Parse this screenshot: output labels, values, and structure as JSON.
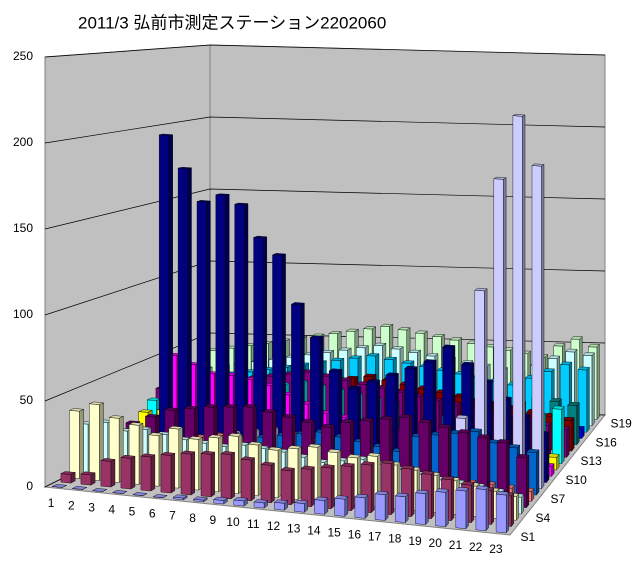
{
  "chart_data": {
    "type": "bar3d",
    "title": "2011/3  弘前市測定ステーション2202060",
    "categories": [
      "1",
      "2",
      "3",
      "4",
      "5",
      "6",
      "7",
      "8",
      "9",
      "10",
      "11",
      "12",
      "13",
      "14",
      "15",
      "16",
      "17",
      "18",
      "19",
      "20",
      "21",
      "22",
      "23"
    ],
    "ylim": [
      0,
      250
    ],
    "yticks": [
      0,
      50,
      100,
      150,
      200,
      250
    ],
    "grid": true,
    "series": [
      {
        "name": "S1",
        "color": "#9999ff",
        "values": [
          0,
          0,
          0,
          0,
          0,
          0,
          1,
          1,
          2,
          3,
          3,
          4,
          5,
          8,
          10,
          12,
          15,
          15,
          18,
          20,
          22,
          24,
          22
        ]
      },
      {
        "name": null,
        "color": "#993366",
        "values": [
          5,
          6,
          15,
          18,
          20,
          22,
          24,
          25,
          26,
          24,
          22,
          20,
          22,
          24,
          26,
          28,
          30,
          28,
          26,
          24,
          22,
          20,
          18
        ]
      },
      {
        "name": null,
        "color": "#ffffcc",
        "values": [
          40,
          45,
          38,
          35,
          30,
          35,
          30,
          32,
          34,
          30,
          28,
          30,
          32,
          30,
          28,
          30,
          26,
          24,
          22,
          20,
          18,
          16,
          14
        ]
      },
      {
        "name": "S4",
        "color": "#ccffff",
        "values": [
          30,
          32,
          28,
          30,
          28,
          26,
          25,
          24,
          26,
          25,
          24,
          22,
          20,
          22,
          24,
          22,
          20,
          18,
          16,
          15,
          14,
          12,
          10
        ]
      },
      {
        "name": null,
        "color": "#660066",
        "values": [
          20,
          25,
          30,
          35,
          40,
          42,
          44,
          45,
          46,
          44,
          42,
          40,
          38,
          42,
          44,
          46,
          48,
          46,
          44,
          42,
          40,
          38,
          30
        ]
      },
      {
        "name": null,
        "color": "#ff8080",
        "values": [
          10,
          12,
          15,
          18,
          20,
          22,
          24,
          22,
          20,
          18,
          16,
          15,
          14,
          13,
          12,
          11,
          10,
          10,
          9,
          8,
          8,
          7,
          6
        ]
      },
      {
        "name": "S7",
        "color": "#0066cc",
        "values": [
          5,
          8,
          10,
          12,
          14,
          16,
          18,
          20,
          22,
          24,
          26,
          28,
          26,
          24,
          22,
          20,
          30,
          32,
          34,
          36,
          30,
          28,
          26
        ]
      },
      {
        "name": null,
        "color": "#ccccff",
        "values": [
          8,
          10,
          12,
          14,
          16,
          18,
          20,
          22,
          24,
          22,
          20,
          18,
          16,
          14,
          12,
          10,
          20,
          30,
          40,
          120,
          190,
          230,
          200
        ]
      },
      {
        "name": null,
        "color": "#000080",
        "values": [
          0,
          0,
          200,
          180,
          160,
          165,
          160,
          140,
          130,
          100,
          80,
          60,
          50,
          55,
          60,
          65,
          70,
          80,
          70,
          60,
          50,
          40,
          30
        ]
      },
      {
        "name": "S10",
        "color": "#ff00ff",
        "values": [
          0,
          0,
          60,
          55,
          50,
          50,
          48,
          45,
          40,
          35,
          30,
          28,
          26,
          24,
          22,
          20,
          18,
          16,
          14,
          12,
          10,
          8,
          6
        ]
      },
      {
        "name": null,
        "color": "#ffff00",
        "values": [
          20,
          22,
          24,
          26,
          28,
          30,
          32,
          30,
          28,
          26,
          24,
          22,
          20,
          18,
          16,
          15,
          14,
          13,
          12,
          11,
          10,
          9,
          8
        ]
      },
      {
        "name": null,
        "color": "#00ffff",
        "values": [
          25,
          28,
          30,
          32,
          34,
          36,
          38,
          40,
          42,
          40,
          38,
          36,
          34,
          32,
          30,
          28,
          26,
          24,
          22,
          20,
          25,
          30,
          35
        ]
      },
      {
        "name": "S13",
        "color": "#800080",
        "values": [
          30,
          32,
          34,
          36,
          38,
          40,
          42,
          44,
          46,
          44,
          42,
          40,
          38,
          36,
          34,
          32,
          30,
          28,
          26,
          24,
          22,
          20,
          18
        ]
      },
      {
        "name": null,
        "color": "#800000",
        "values": [
          20,
          22,
          24,
          26,
          28,
          30,
          32,
          34,
          36,
          38,
          40,
          42,
          40,
          38,
          36,
          34,
          32,
          30,
          28,
          26,
          24,
          22,
          20
        ]
      },
      {
        "name": null,
        "color": "#008080",
        "values": [
          15,
          18,
          20,
          22,
          24,
          26,
          28,
          30,
          28,
          26,
          24,
          22,
          20,
          18,
          16,
          14,
          12,
          10,
          20,
          25,
          30,
          28,
          26
        ]
      },
      {
        "name": "S16",
        "color": "#0000ff",
        "values": [
          10,
          12,
          14,
          16,
          18,
          20,
          22,
          24,
          26,
          28,
          30,
          28,
          26,
          24,
          22,
          20,
          18,
          16,
          14,
          12,
          10,
          8,
          6
        ]
      },
      {
        "name": null,
        "color": "#00ccff",
        "values": [
          25,
          28,
          30,
          32,
          34,
          36,
          38,
          40,
          42,
          44,
          46,
          44,
          42,
          40,
          38,
          36,
          34,
          32,
          30,
          35,
          40,
          45,
          42
        ]
      },
      {
        "name": null,
        "color": "#ccffff",
        "values": [
          30,
          32,
          34,
          36,
          38,
          40,
          42,
          44,
          46,
          48,
          50,
          48,
          46,
          44,
          42,
          40,
          38,
          36,
          34,
          40,
          45,
          50,
          48
        ]
      },
      {
        "name": "S19",
        "color": "#ccffcc",
        "values": [
          40,
          42,
          44,
          46,
          48,
          50,
          52,
          54,
          56,
          58,
          60,
          58,
          56,
          54,
          52,
          50,
          48,
          46,
          44,
          42,
          50,
          55,
          50
        ]
      }
    ]
  }
}
